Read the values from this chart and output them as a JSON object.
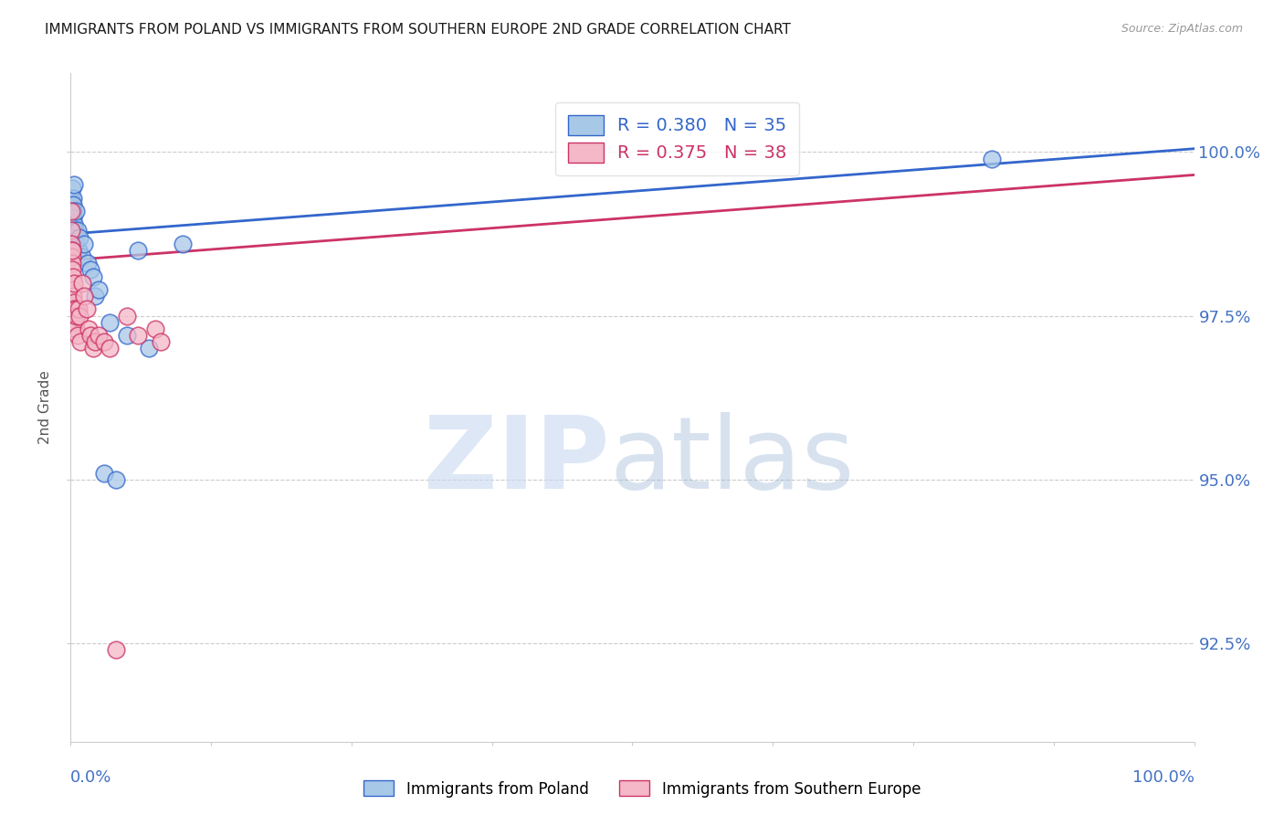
{
  "title": "IMMIGRANTS FROM POLAND VS IMMIGRANTS FROM SOUTHERN EUROPE 2ND GRADE CORRELATION CHART",
  "source": "Source: ZipAtlas.com",
  "ylabel": "2nd Grade",
  "blue_label": "Immigrants from Poland",
  "pink_label": "Immigrants from Southern Europe",
  "blue_R": 0.38,
  "blue_N": 35,
  "pink_R": 0.375,
  "pink_N": 38,
  "blue_color": "#a8c8e8",
  "pink_color": "#f4b8c8",
  "blue_line_color": "#3366cc",
  "pink_line_color": "#cc3366",
  "ytick_values": [
    100.0,
    97.5,
    95.0,
    92.5
  ],
  "ymin": 91.0,
  "ymax": 101.2,
  "xmin": 0.0,
  "xmax": 100.0,
  "blue_points_x": [
    0.05,
    0.07,
    0.08,
    0.1,
    0.12,
    0.13,
    0.15,
    0.18,
    0.2,
    0.22,
    0.25,
    0.28,
    0.3,
    0.35,
    0.4,
    0.45,
    0.5,
    0.6,
    0.7,
    0.8,
    1.0,
    1.2,
    1.5,
    1.8,
    2.0,
    2.2,
    2.5,
    3.0,
    3.5,
    4.0,
    5.0,
    6.0,
    7.0,
    10.0,
    82.0
  ],
  "blue_points_y": [
    99.3,
    99.2,
    99.15,
    99.1,
    99.05,
    99.0,
    99.45,
    99.3,
    99.2,
    99.1,
    99.0,
    98.9,
    99.5,
    98.8,
    98.7,
    99.1,
    98.6,
    98.8,
    98.5,
    98.7,
    98.4,
    98.6,
    98.3,
    98.2,
    98.1,
    97.8,
    97.9,
    95.1,
    97.4,
    95.0,
    97.2,
    98.5,
    97.0,
    98.6,
    99.9
  ],
  "pink_points_x": [
    0.05,
    0.07,
    0.09,
    0.1,
    0.12,
    0.14,
    0.15,
    0.17,
    0.2,
    0.22,
    0.25,
    0.28,
    0.3,
    0.33,
    0.36,
    0.4,
    0.45,
    0.5,
    0.55,
    0.6,
    0.7,
    0.8,
    0.9,
    1.0,
    1.2,
    1.4,
    1.6,
    1.8,
    2.0,
    2.2,
    2.5,
    3.0,
    3.5,
    4.0,
    5.0,
    6.0,
    7.5,
    8.0
  ],
  "pink_points_y": [
    99.1,
    98.8,
    98.6,
    98.5,
    98.4,
    98.3,
    98.5,
    98.2,
    98.1,
    97.9,
    97.8,
    97.7,
    98.0,
    97.6,
    97.5,
    97.4,
    97.6,
    97.3,
    97.5,
    97.2,
    97.6,
    97.5,
    97.1,
    98.0,
    97.8,
    97.6,
    97.3,
    97.2,
    97.0,
    97.1,
    97.2,
    97.1,
    97.0,
    92.4,
    97.5,
    97.2,
    97.3,
    97.1
  ],
  "blue_trend_x0": 0.0,
  "blue_trend_y0": 98.75,
  "blue_trend_x1": 100.0,
  "blue_trend_y1": 100.05,
  "pink_trend_x0": 0.0,
  "pink_trend_y0": 98.35,
  "pink_trend_x1": 100.0,
  "pink_trend_y1": 99.65,
  "grid_color": "#cccccc",
  "background_color": "#ffffff",
  "title_fontsize": 11,
  "axis_label_color": "#555555",
  "right_label_color": "#4472c4",
  "bottom_label_color": "#4472c4",
  "watermark_zip_color": "#c8d8f0",
  "watermark_atlas_color": "#9eb8d8"
}
